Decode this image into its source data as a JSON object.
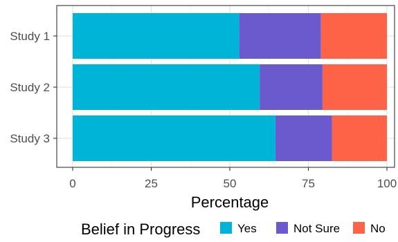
{
  "chart_data": {
    "type": "bar",
    "orientation": "horizontal",
    "stacked": true,
    "categories": [
      "Study 1",
      "Study 2",
      "Study 3"
    ],
    "series": [
      {
        "name": "Yes",
        "color": "#00B4D8",
        "values": [
          53,
          59.5,
          64.5
        ]
      },
      {
        "name": "Not Sure",
        "color": "#6A5ACD",
        "values": [
          26,
          20,
          18
        ]
      },
      {
        "name": "No",
        "color": "#FF6347",
        "values": [
          21,
          20.5,
          17.5
        ]
      }
    ],
    "xlabel": "Percentage",
    "ylabel": "",
    "xlim": [
      0,
      100
    ],
    "xticks": [
      0,
      25,
      50,
      75,
      100
    ],
    "legend": {
      "title": "Belief in Progress",
      "position": "bottom"
    },
    "grid": true,
    "panel_border": true
  }
}
